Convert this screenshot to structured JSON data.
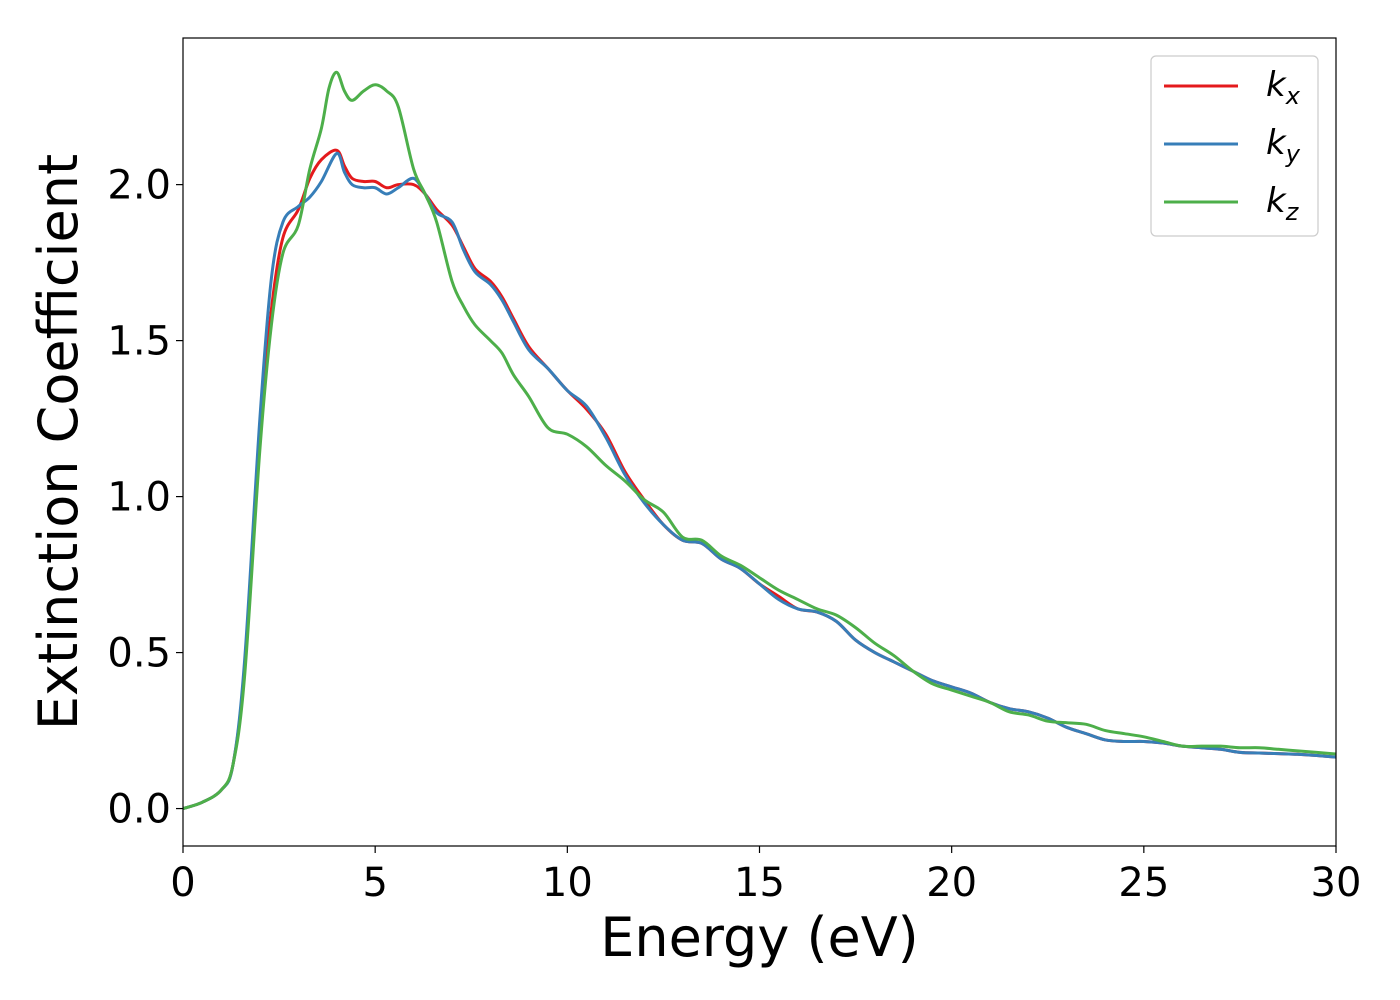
{
  "chart_data": {
    "type": "line",
    "title": "",
    "xlabel": "Energy (eV)",
    "ylabel": "Extinction Coefficient",
    "xlim": [
      0,
      30
    ],
    "ylim": [
      -0.12,
      2.47
    ],
    "xticks": [
      0,
      5,
      10,
      15,
      20,
      25,
      30
    ],
    "xtick_labels": [
      "0",
      "5",
      "10",
      "15",
      "20",
      "25",
      "30"
    ],
    "yticks": [
      0.0,
      0.5,
      1.0,
      1.5,
      2.0
    ],
    "ytick_labels": [
      "0.0",
      "0.5",
      "1.0",
      "1.5",
      "2.0"
    ],
    "grid": false,
    "legend_position": "top-right",
    "series": [
      {
        "name": "kx",
        "label_base": "k",
        "label_sub": "x",
        "color": "#e41a1c",
        "points": [
          [
            0,
            0.0
          ],
          [
            0.5,
            0.02
          ],
          [
            1.0,
            0.06
          ],
          [
            1.3,
            0.14
          ],
          [
            1.6,
            0.45
          ],
          [
            2.0,
            1.2
          ],
          [
            2.3,
            1.6
          ],
          [
            2.6,
            1.83
          ],
          [
            3.0,
            1.92
          ],
          [
            3.3,
            2.02
          ],
          [
            3.6,
            2.08
          ],
          [
            4.0,
            2.11
          ],
          [
            4.2,
            2.06
          ],
          [
            4.4,
            2.02
          ],
          [
            4.7,
            2.01
          ],
          [
            5.0,
            2.01
          ],
          [
            5.3,
            1.99
          ],
          [
            5.6,
            2.0
          ],
          [
            6.0,
            2.0
          ],
          [
            6.3,
            1.97
          ],
          [
            6.6,
            1.92
          ],
          [
            7.0,
            1.87
          ],
          [
            7.3,
            1.8
          ],
          [
            7.6,
            1.73
          ],
          [
            8.0,
            1.69
          ],
          [
            8.3,
            1.64
          ],
          [
            8.6,
            1.57
          ],
          [
            9.0,
            1.48
          ],
          [
            9.5,
            1.41
          ],
          [
            10.0,
            1.34
          ],
          [
            10.5,
            1.28
          ],
          [
            11.0,
            1.2
          ],
          [
            11.5,
            1.08
          ],
          [
            12.0,
            0.99
          ],
          [
            12.5,
            0.91
          ],
          [
            13.0,
            0.86
          ],
          [
            13.5,
            0.85
          ],
          [
            14.0,
            0.8
          ],
          [
            14.5,
            0.77
          ],
          [
            15.0,
            0.72
          ],
          [
            15.5,
            0.68
          ],
          [
            16.0,
            0.64
          ],
          [
            16.5,
            0.63
          ],
          [
            17.0,
            0.6
          ],
          [
            17.5,
            0.54
          ],
          [
            18.0,
            0.5
          ],
          [
            18.5,
            0.47
          ],
          [
            19.0,
            0.44
          ],
          [
            19.5,
            0.41
          ],
          [
            20.0,
            0.39
          ],
          [
            20.5,
            0.37
          ],
          [
            21.0,
            0.34
          ],
          [
            21.5,
            0.32
          ],
          [
            22.0,
            0.31
          ],
          [
            22.5,
            0.29
          ],
          [
            23.0,
            0.26
          ],
          [
            23.5,
            0.24
          ],
          [
            24.0,
            0.22
          ],
          [
            24.5,
            0.215
          ],
          [
            25.0,
            0.215
          ],
          [
            25.5,
            0.21
          ],
          [
            26.0,
            0.2
          ],
          [
            26.5,
            0.195
          ],
          [
            27.0,
            0.19
          ],
          [
            27.5,
            0.18
          ],
          [
            28.0,
            0.178
          ],
          [
            28.5,
            0.176
          ],
          [
            29.0,
            0.174
          ],
          [
            29.5,
            0.17
          ],
          [
            30.0,
            0.165
          ]
        ]
      },
      {
        "name": "ky",
        "label_base": "k",
        "label_sub": "y",
        "color": "#377eb8",
        "points": [
          [
            0,
            0.0
          ],
          [
            0.5,
            0.02
          ],
          [
            1.0,
            0.06
          ],
          [
            1.3,
            0.14
          ],
          [
            1.6,
            0.47
          ],
          [
            2.0,
            1.25
          ],
          [
            2.3,
            1.7
          ],
          [
            2.6,
            1.88
          ],
          [
            3.0,
            1.93
          ],
          [
            3.3,
            1.96
          ],
          [
            3.6,
            2.01
          ],
          [
            4.0,
            2.1
          ],
          [
            4.2,
            2.04
          ],
          [
            4.4,
            2.0
          ],
          [
            4.7,
            1.99
          ],
          [
            5.0,
            1.99
          ],
          [
            5.3,
            1.97
          ],
          [
            5.6,
            1.99
          ],
          [
            6.0,
            2.02
          ],
          [
            6.3,
            1.97
          ],
          [
            6.6,
            1.91
          ],
          [
            7.0,
            1.88
          ],
          [
            7.3,
            1.79
          ],
          [
            7.6,
            1.72
          ],
          [
            8.0,
            1.68
          ],
          [
            8.3,
            1.63
          ],
          [
            8.6,
            1.56
          ],
          [
            9.0,
            1.47
          ],
          [
            9.5,
            1.41
          ],
          [
            10.0,
            1.34
          ],
          [
            10.5,
            1.29
          ],
          [
            11.0,
            1.19
          ],
          [
            11.5,
            1.07
          ],
          [
            12.0,
            0.98
          ],
          [
            12.5,
            0.91
          ],
          [
            13.0,
            0.86
          ],
          [
            13.5,
            0.85
          ],
          [
            14.0,
            0.8
          ],
          [
            14.5,
            0.77
          ],
          [
            15.0,
            0.72
          ],
          [
            15.5,
            0.67
          ],
          [
            16.0,
            0.64
          ],
          [
            16.5,
            0.63
          ],
          [
            17.0,
            0.6
          ],
          [
            17.5,
            0.54
          ],
          [
            18.0,
            0.5
          ],
          [
            18.5,
            0.47
          ],
          [
            19.0,
            0.44
          ],
          [
            19.5,
            0.41
          ],
          [
            20.0,
            0.39
          ],
          [
            20.5,
            0.37
          ],
          [
            21.0,
            0.34
          ],
          [
            21.5,
            0.32
          ],
          [
            22.0,
            0.31
          ],
          [
            22.5,
            0.29
          ],
          [
            23.0,
            0.26
          ],
          [
            23.5,
            0.24
          ],
          [
            24.0,
            0.22
          ],
          [
            24.5,
            0.215
          ],
          [
            25.0,
            0.215
          ],
          [
            25.5,
            0.21
          ],
          [
            26.0,
            0.2
          ],
          [
            26.5,
            0.195
          ],
          [
            27.0,
            0.19
          ],
          [
            27.5,
            0.18
          ],
          [
            28.0,
            0.178
          ],
          [
            28.5,
            0.176
          ],
          [
            29.0,
            0.174
          ],
          [
            29.5,
            0.17
          ],
          [
            30.0,
            0.165
          ]
        ]
      },
      {
        "name": "kz",
        "label_base": "k",
        "label_sub": "z",
        "color": "#4daf4a",
        "points": [
          [
            0,
            0.0
          ],
          [
            0.5,
            0.02
          ],
          [
            1.0,
            0.06
          ],
          [
            1.3,
            0.14
          ],
          [
            1.6,
            0.42
          ],
          [
            2.0,
            1.15
          ],
          [
            2.3,
            1.55
          ],
          [
            2.6,
            1.78
          ],
          [
            3.0,
            1.87
          ],
          [
            3.3,
            2.05
          ],
          [
            3.6,
            2.18
          ],
          [
            3.8,
            2.31
          ],
          [
            4.0,
            2.36
          ],
          [
            4.2,
            2.3
          ],
          [
            4.4,
            2.27
          ],
          [
            4.7,
            2.3
          ],
          [
            5.0,
            2.32
          ],
          [
            5.3,
            2.3
          ],
          [
            5.6,
            2.25
          ],
          [
            6.0,
            2.05
          ],
          [
            6.3,
            1.97
          ],
          [
            6.6,
            1.88
          ],
          [
            7.0,
            1.69
          ],
          [
            7.3,
            1.61
          ],
          [
            7.6,
            1.55
          ],
          [
            8.0,
            1.5
          ],
          [
            8.3,
            1.46
          ],
          [
            8.6,
            1.39
          ],
          [
            9.0,
            1.32
          ],
          [
            9.5,
            1.22
          ],
          [
            10.0,
            1.2
          ],
          [
            10.5,
            1.16
          ],
          [
            11.0,
            1.1
          ],
          [
            11.5,
            1.05
          ],
          [
            12.0,
            0.99
          ],
          [
            12.5,
            0.95
          ],
          [
            13.0,
            0.87
          ],
          [
            13.5,
            0.86
          ],
          [
            14.0,
            0.81
          ],
          [
            14.5,
            0.78
          ],
          [
            15.0,
            0.74
          ],
          [
            15.5,
            0.7
          ],
          [
            16.0,
            0.67
          ],
          [
            16.5,
            0.64
          ],
          [
            17.0,
            0.62
          ],
          [
            17.5,
            0.58
          ],
          [
            18.0,
            0.53
          ],
          [
            18.5,
            0.49
          ],
          [
            19.0,
            0.44
          ],
          [
            19.5,
            0.4
          ],
          [
            20.0,
            0.38
          ],
          [
            20.5,
            0.36
          ],
          [
            21.0,
            0.34
          ],
          [
            21.5,
            0.31
          ],
          [
            22.0,
            0.3
          ],
          [
            22.5,
            0.28
          ],
          [
            23.0,
            0.275
          ],
          [
            23.5,
            0.27
          ],
          [
            24.0,
            0.25
          ],
          [
            24.5,
            0.24
          ],
          [
            25.0,
            0.23
          ],
          [
            25.5,
            0.215
          ],
          [
            26.0,
            0.2
          ],
          [
            26.5,
            0.2
          ],
          [
            27.0,
            0.2
          ],
          [
            27.5,
            0.195
          ],
          [
            28.0,
            0.195
          ],
          [
            28.5,
            0.19
          ],
          [
            29.0,
            0.185
          ],
          [
            29.5,
            0.18
          ],
          [
            30.0,
            0.175
          ]
        ]
      }
    ]
  }
}
